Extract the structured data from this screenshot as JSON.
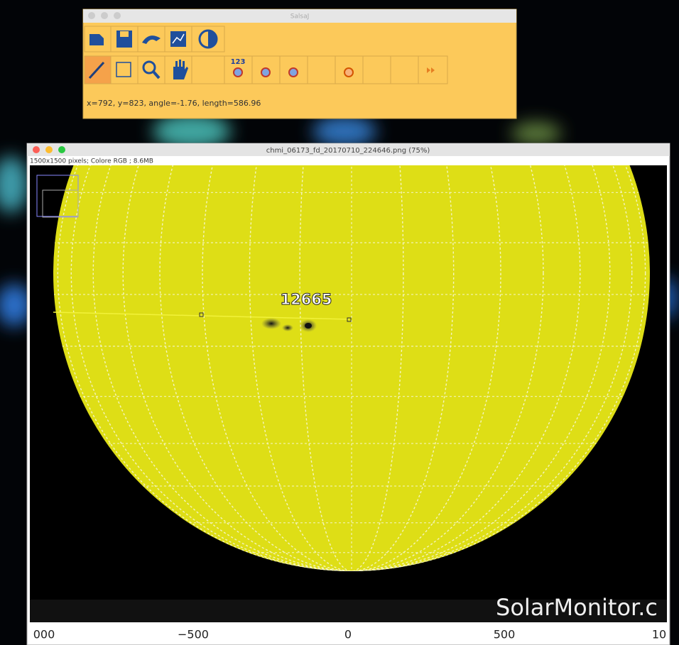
{
  "toolbar": {
    "title": "SalsaJ",
    "counter_icon": "123",
    "status": "x=792, y=823, angle=-1.76, length=586.96"
  },
  "image_window": {
    "title": "chmi_06173_fd_20170710_224646.png (75%)",
    "info": "1500x1500 pixels; Colore RGB ; 8.6MB"
  },
  "image": {
    "region_label": "12665",
    "watermark": "SolarMonitor.c",
    "axis_labels": [
      "000",
      "−500",
      "0",
      "500",
      "10"
    ]
  }
}
